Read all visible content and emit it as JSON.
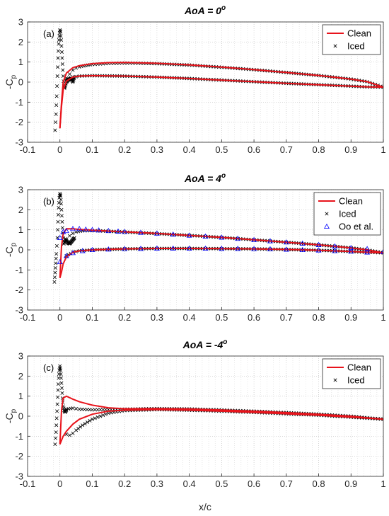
{
  "chart_data": [
    {
      "type": "line",
      "title": "AoA = 0",
      "title_superscript": "o",
      "panel_label": "(a)",
      "ylabel": "-C",
      "ylabel_subscript": "p",
      "xlabel": "",
      "xlim": [
        -0.1,
        1
      ],
      "ylim": [
        -3,
        3
      ],
      "xticks": [
        "-0.1",
        "0",
        "0.1",
        "0.2",
        "0.3",
        "0.4",
        "0.5",
        "0.6",
        "0.7",
        "0.8",
        "0.9",
        "1"
      ],
      "yticks": [
        "3",
        "2",
        "1",
        "0",
        "-1",
        "-2",
        "-3"
      ],
      "grid": "dotted",
      "legend": {
        "position": "top-right",
        "entries": [
          "Clean",
          "Iced"
        ]
      },
      "series": [
        {
          "name": "Clean",
          "style": "line",
          "color": "#e8141c",
          "upper": {
            "x": [
              0.0,
              0.005,
              0.01,
              0.02,
              0.04,
              0.06,
              0.1,
              0.15,
              0.2,
              0.25,
              0.3,
              0.4,
              0.5,
              0.6,
              0.7,
              0.8,
              0.9,
              0.95,
              1.0
            ],
            "y": [
              -2.3,
              -1.0,
              0.0,
              0.45,
              0.72,
              0.82,
              0.92,
              0.97,
              0.98,
              0.96,
              0.94,
              0.86,
              0.75,
              0.62,
              0.48,
              0.33,
              0.15,
              0.02,
              -0.25
            ]
          },
          "lower": {
            "x": [
              0.0,
              0.005,
              0.01,
              0.02,
              0.04,
              0.06,
              0.1,
              0.2,
              0.3,
              0.4,
              0.5,
              0.6,
              0.7,
              0.8,
              0.9,
              0.95,
              1.0
            ],
            "y": [
              -2.3,
              -1.2,
              -0.4,
              0.05,
              0.25,
              0.3,
              0.32,
              0.3,
              0.25,
              0.18,
              0.1,
              0.02,
              -0.06,
              -0.13,
              -0.2,
              -0.24,
              -0.25
            ]
          }
        },
        {
          "name": "Iced",
          "style": "marker-x",
          "color": "#000000",
          "upper": {
            "x": [
              0.02,
              0.03,
              0.04,
              0.05,
              0.06,
              0.08,
              0.1,
              0.15,
              0.2,
              0.25,
              0.3,
              0.4,
              0.5,
              0.6,
              0.7,
              0.8,
              0.9,
              0.95,
              1.0
            ],
            "y": [
              0.2,
              0.4,
              0.6,
              0.7,
              0.76,
              0.83,
              0.88,
              0.93,
              0.95,
              0.94,
              0.92,
              0.85,
              0.74,
              0.62,
              0.48,
              0.33,
              0.15,
              0.02,
              -0.25
            ]
          },
          "lower": {
            "x": [
              0.02,
              0.04,
              0.06,
              0.1,
              0.2,
              0.3,
              0.4,
              0.5,
              0.6,
              0.7,
              0.8,
              0.9,
              0.95,
              1.0
            ],
            "y": [
              0.1,
              0.25,
              0.3,
              0.32,
              0.3,
              0.25,
              0.18,
              0.1,
              0.02,
              -0.06,
              -0.13,
              -0.2,
              -0.24,
              -0.25
            ]
          },
          "ice": {
            "x": [
              -0.015,
              -0.012,
              -0.01,
              -0.008,
              -0.006,
              -0.004,
              -0.002,
              0.0,
              0.002,
              0.004,
              0.006,
              0.008,
              0.01,
              0.012,
              0.014,
              0.017,
              0.02,
              0.025,
              0.03,
              0.035,
              0.04,
              0.045
            ],
            "y": [
              -2.4,
              -1.6,
              -0.7,
              0.3,
              1.2,
              1.9,
              2.3,
              2.6,
              2.5,
              2.1,
              1.5,
              0.9,
              0.3,
              -0.2,
              -0.3,
              -0.15,
              0.0,
              0.1,
              0.15,
              0.2,
              0.0,
              0.25
            ]
          }
        }
      ]
    },
    {
      "type": "line",
      "title": "AoA = 4",
      "title_superscript": "o",
      "panel_label": "(b)",
      "ylabel": "-C",
      "ylabel_subscript": "p",
      "xlabel": "",
      "xlim": [
        -0.1,
        1
      ],
      "ylim": [
        -3,
        3
      ],
      "xticks": [
        "-0.1",
        "0",
        "0.1",
        "0.2",
        "0.3",
        "0.4",
        "0.5",
        "0.6",
        "0.7",
        "0.8",
        "0.9",
        "1"
      ],
      "yticks": [
        "3",
        "2",
        "1",
        "0",
        "-1",
        "-2",
        "-3"
      ],
      "grid": "dotted",
      "legend": {
        "position": "top-right",
        "entries": [
          "Clean",
          "Iced",
          "Oo et al."
        ]
      },
      "series": [
        {
          "name": "Clean",
          "style": "line",
          "color": "#e8141c",
          "upper": {
            "x": [
              0.0,
              0.005,
              0.01,
              0.02,
              0.04,
              0.06,
              0.1,
              0.15,
              0.2,
              0.3,
              0.4,
              0.5,
              0.6,
              0.7,
              0.8,
              0.9,
              0.95,
              1.0
            ],
            "y": [
              -1.4,
              0.2,
              0.8,
              1.05,
              1.05,
              1.02,
              0.98,
              0.94,
              0.9,
              0.82,
              0.72,
              0.62,
              0.5,
              0.38,
              0.25,
              0.1,
              0.0,
              -0.15
            ]
          },
          "lower": {
            "x": [
              0.0,
              0.005,
              0.01,
              0.02,
              0.04,
              0.06,
              0.1,
              0.2,
              0.3,
              0.4,
              0.5,
              0.6,
              0.7,
              0.8,
              0.9,
              0.95,
              1.0
            ],
            "y": [
              -1.4,
              -1.1,
              -0.7,
              -0.35,
              -0.12,
              -0.05,
              0.0,
              0.05,
              0.07,
              0.07,
              0.06,
              0.05,
              0.02,
              -0.02,
              -0.08,
              -0.12,
              -0.15
            ]
          }
        },
        {
          "name": "Iced",
          "style": "marker-x",
          "color": "#000000",
          "upper": {
            "x": [
              0.02,
              0.03,
              0.04,
              0.05,
              0.07,
              0.1,
              0.15,
              0.2,
              0.3,
              0.4,
              0.5,
              0.6,
              0.7,
              0.8,
              0.9,
              0.95,
              1.0
            ],
            "y": [
              0.5,
              0.7,
              0.82,
              0.9,
              0.95,
              0.96,
              0.93,
              0.89,
              0.81,
              0.72,
              0.62,
              0.5,
              0.38,
              0.25,
              0.1,
              0.0,
              -0.15
            ]
          },
          "lower": {
            "x": [
              0.02,
              0.04,
              0.06,
              0.1,
              0.2,
              0.3,
              0.4,
              0.5,
              0.6,
              0.7,
              0.8,
              0.9,
              0.95,
              1.0
            ],
            "y": [
              -0.3,
              -0.12,
              -0.05,
              0.0,
              0.05,
              0.07,
              0.07,
              0.06,
              0.05,
              0.02,
              -0.02,
              -0.08,
              -0.12,
              -0.15
            ]
          },
          "ice": {
            "x": [
              -0.017,
              -0.014,
              -0.011,
              -0.008,
              -0.006,
              -0.004,
              -0.002,
              0.0,
              0.002,
              0.004,
              0.006,
              0.008,
              0.01,
              0.012,
              0.015,
              0.018,
              0.02,
              0.025,
              0.03,
              0.035,
              0.04,
              0.045
            ],
            "y": [
              -1.6,
              -0.9,
              -0.2,
              0.6,
              1.4,
              2.1,
              2.6,
              2.8,
              2.7,
              2.3,
              1.7,
              1.1,
              0.6,
              0.3,
              0.4,
              0.55,
              0.45,
              0.35,
              0.3,
              0.4,
              0.5,
              0.6
            ]
          }
        },
        {
          "name": "Oo et al.",
          "style": "marker-triangle",
          "color": "#0000ff",
          "upper": {
            "x": [
              0.0,
              0.01,
              0.02,
              0.04,
              0.06,
              0.08,
              0.1,
              0.12,
              0.15,
              0.18,
              0.2,
              0.25,
              0.3,
              0.35,
              0.4,
              0.45,
              0.5,
              0.55,
              0.6,
              0.65,
              0.7,
              0.75,
              0.8,
              0.85,
              0.9,
              0.95,
              1.0
            ],
            "y": [
              0.6,
              0.9,
              0.95,
              1.05,
              1.05,
              1.02,
              1.0,
              0.98,
              0.95,
              0.92,
              0.9,
              0.86,
              0.82,
              0.77,
              0.72,
              0.67,
              0.62,
              0.56,
              0.5,
              0.44,
              0.38,
              0.32,
              0.25,
              0.18,
              0.1,
              0.05,
              -0.1
            ]
          },
          "lower": {
            "x": [
              0.0,
              0.02,
              0.04,
              0.07,
              0.1,
              0.15,
              0.2,
              0.25,
              0.3,
              0.35,
              0.4,
              0.45,
              0.5,
              0.55,
              0.6,
              0.65,
              0.7,
              0.75,
              0.8,
              0.85,
              0.9,
              0.95
            ],
            "y": [
              -0.6,
              -0.3,
              -0.15,
              -0.05,
              0.0,
              0.03,
              0.05,
              0.06,
              0.07,
              0.07,
              0.07,
              0.07,
              0.06,
              0.06,
              0.05,
              0.04,
              0.02,
              0.0,
              -0.02,
              -0.05,
              -0.08,
              -0.12
            ]
          }
        }
      ]
    },
    {
      "type": "line",
      "title": "AoA = -4",
      "title_superscript": "o",
      "panel_label": "(c)",
      "ylabel": "-C",
      "ylabel_subscript": "p",
      "xlabel": "x/c",
      "xlim": [
        -0.1,
        1
      ],
      "ylim": [
        -3,
        3
      ],
      "xticks": [
        "-0.1",
        "0",
        "0.1",
        "0.2",
        "0.3",
        "0.4",
        "0.5",
        "0.6",
        "0.7",
        "0.8",
        "0.9",
        "1"
      ],
      "yticks": [
        "3",
        "2",
        "1",
        "0",
        "-1",
        "-2",
        "-3"
      ],
      "grid": "dotted",
      "legend": {
        "position": "top-right",
        "entries": [
          "Clean",
          "Iced"
        ]
      },
      "series": [
        {
          "name": "Clean",
          "style": "line",
          "color": "#e8141c",
          "upper": {
            "x": [
              0.0,
              0.005,
              0.01,
              0.02,
              0.04,
              0.06,
              0.1,
              0.15,
              0.2,
              0.3,
              0.4,
              0.5,
              0.6,
              0.7,
              0.8,
              0.9,
              0.95,
              1.0
            ],
            "y": [
              -1.4,
              0.3,
              0.9,
              1.0,
              0.85,
              0.72,
              0.55,
              0.42,
              0.37,
              0.38,
              0.36,
              0.31,
              0.25,
              0.18,
              0.1,
              0.0,
              -0.08,
              -0.15
            ]
          },
          "lower": {
            "x": [
              0.0,
              0.005,
              0.01,
              0.02,
              0.04,
              0.06,
              0.1,
              0.15,
              0.2,
              0.3,
              0.4,
              0.5,
              0.6,
              0.7,
              0.8,
              0.9,
              0.95,
              1.0
            ],
            "y": [
              -1.4,
              -1.2,
              -1.0,
              -0.75,
              -0.4,
              -0.15,
              0.1,
              0.25,
              0.3,
              0.33,
              0.3,
              0.25,
              0.19,
              0.12,
              0.05,
              -0.05,
              -0.1,
              -0.15
            ]
          }
        },
        {
          "name": "Iced",
          "style": "marker-x",
          "color": "#000000",
          "upper": {
            "x": [
              0.02,
              0.04,
              0.06,
              0.1,
              0.15,
              0.2,
              0.3,
              0.4,
              0.5,
              0.6,
              0.7,
              0.8,
              0.9,
              0.95,
              1.0
            ],
            "y": [
              0.35,
              0.4,
              0.35,
              0.32,
              0.33,
              0.35,
              0.38,
              0.36,
              0.31,
              0.25,
              0.18,
              0.1,
              0.0,
              -0.08,
              -0.15
            ]
          },
          "lower": {
            "x": [
              0.02,
              0.03,
              0.04,
              0.05,
              0.07,
              0.1,
              0.15,
              0.2,
              0.3,
              0.4,
              0.5,
              0.6,
              0.7,
              0.8,
              0.9,
              0.95,
              1.0
            ],
            "y": [
              -0.9,
              -0.95,
              -0.85,
              -0.7,
              -0.45,
              -0.15,
              0.15,
              0.28,
              0.33,
              0.3,
              0.25,
              0.19,
              0.12,
              0.05,
              -0.05,
              -0.1,
              -0.15
            ]
          },
          "ice": {
            "x": [
              -0.015,
              -0.012,
              -0.01,
              -0.008,
              -0.006,
              -0.004,
              -0.002,
              0.0,
              0.002,
              0.004,
              0.006,
              0.008,
              0.01,
              0.013,
              0.016,
              0.02
            ],
            "y": [
              -1.4,
              -0.8,
              -0.1,
              0.6,
              1.3,
              1.9,
              2.3,
              2.5,
              2.3,
              1.9,
              1.4,
              0.9,
              0.5,
              0.3,
              0.2,
              0.3
            ]
          }
        }
      ]
    }
  ]
}
